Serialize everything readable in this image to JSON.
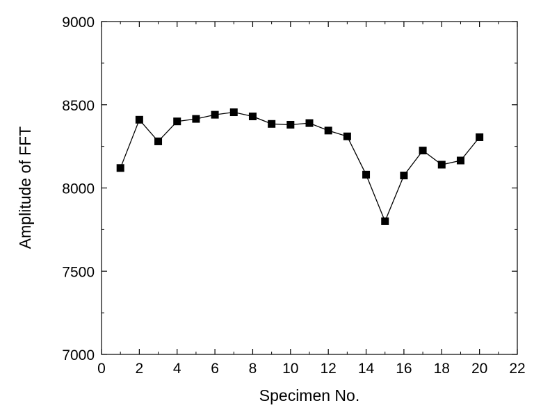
{
  "chart_data": {
    "type": "line",
    "title": "",
    "xlabel": "Specimen No.",
    "ylabel": "Amplitude of FFT",
    "xlim": [
      0,
      22
    ],
    "ylim": [
      7000,
      9000
    ],
    "xticks": [
      0,
      2,
      4,
      6,
      8,
      10,
      12,
      14,
      16,
      18,
      20,
      22
    ],
    "yticks": [
      7000,
      7500,
      8000,
      8500,
      9000
    ],
    "grid": false,
    "legend": "none",
    "marker": "square",
    "colors": {
      "line": "#000000",
      "marker": "#000000",
      "axis": "#000000"
    },
    "series": [
      {
        "x": [
          1,
          2,
          3,
          4,
          5,
          6,
          7,
          8,
          9,
          10,
          11,
          12,
          13,
          14,
          15,
          16,
          17,
          18,
          19,
          20
        ],
        "values": [
          8120,
          8410,
          8280,
          8400,
          8415,
          8440,
          8455,
          8430,
          8385,
          8380,
          8390,
          8345,
          8310,
          8080,
          7800,
          8075,
          8225,
          8140,
          8165,
          8305
        ]
      }
    ]
  }
}
